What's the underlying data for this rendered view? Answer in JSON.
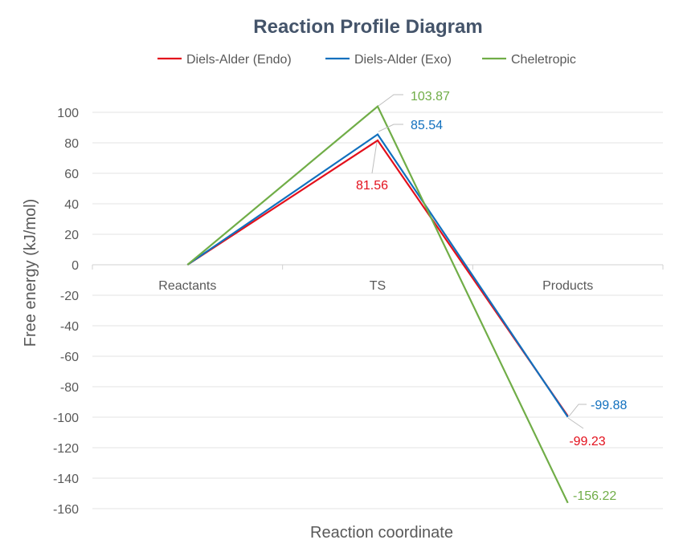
{
  "chart_data": {
    "type": "line",
    "title": "Reaction Profile Diagram",
    "xlabel": "Reaction coordinate",
    "ylabel": "Free energy (kJ/mol)",
    "categories": [
      "Reactants",
      "TS",
      "Products"
    ],
    "ylim": [
      -160,
      100
    ],
    "ytick_step": 20,
    "yticks": [
      "100",
      "80",
      "60",
      "40",
      "20",
      "0",
      "-20",
      "-40",
      "-60",
      "-80",
      "-100",
      "-120",
      "-140",
      "-160"
    ],
    "grid": true,
    "legend_position": "top",
    "series": [
      {
        "name": "Diels-Alder (Endo)",
        "color": "#E3101C",
        "values": [
          0,
          81.56,
          -99.23
        ],
        "labels": [
          "",
          "81.56",
          "-99.23"
        ]
      },
      {
        "name": "Diels-Alder (Exo)",
        "color": "#1170BE",
        "values": [
          0,
          85.54,
          -99.88
        ],
        "labels": [
          "",
          "85.54",
          "-99.88"
        ]
      },
      {
        "name": "Cheletropic",
        "color": "#70AD47",
        "values": [
          0,
          103.87,
          -156.22
        ],
        "labels": [
          "",
          "103.87",
          "-156.22"
        ]
      }
    ]
  }
}
